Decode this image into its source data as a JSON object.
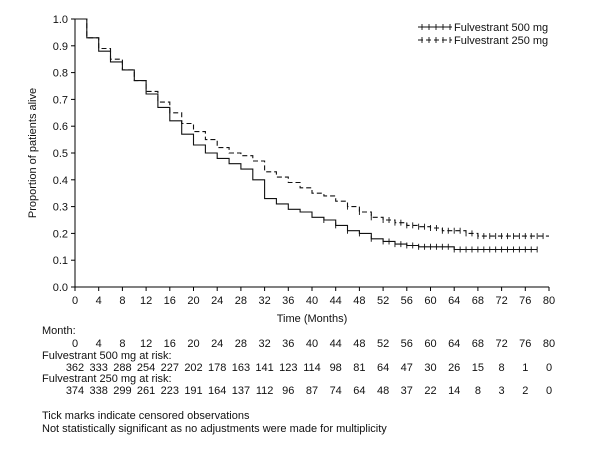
{
  "chart_data": {
    "type": "line",
    "subtype": "kaplan-meier",
    "xlabel": "Time (Months)",
    "ylabel": "Proportion of patients alive",
    "xlim": [
      0,
      80
    ],
    "ylim": [
      0.0,
      1.0
    ],
    "x_ticks": [
      "0",
      "4",
      "8",
      "12",
      "16",
      "20",
      "24",
      "28",
      "32",
      "36",
      "40",
      "44",
      "48",
      "52",
      "56",
      "60",
      "64",
      "68",
      "72",
      "76",
      "80"
    ],
    "y_ticks": [
      "0.0",
      "0.1",
      "0.2",
      "0.3",
      "0.4",
      "0.5",
      "0.6",
      "0.7",
      "0.8",
      "0.9",
      "1.0"
    ],
    "legend": [
      {
        "label": "Fulvestrant 500 mg",
        "style": "solid-censored"
      },
      {
        "label": "Fulvestrant 250 mg",
        "style": "dashed-censored"
      }
    ],
    "series": [
      {
        "name": "Fulvestrant 500 mg",
        "style": "solid",
        "x": [
          0,
          2,
          4,
          6,
          8,
          10,
          12,
          14,
          16,
          18,
          20,
          22,
          24,
          26,
          28,
          30,
          32,
          34,
          36,
          38,
          40,
          42,
          44,
          46,
          48,
          50,
          52,
          54,
          56,
          58,
          60,
          62,
          64,
          66,
          68,
          70,
          72,
          74,
          76,
          78
        ],
        "y": [
          1.0,
          0.93,
          0.88,
          0.84,
          0.81,
          0.77,
          0.72,
          0.67,
          0.62,
          0.57,
          0.53,
          0.5,
          0.48,
          0.46,
          0.44,
          0.4,
          0.33,
          0.31,
          0.29,
          0.28,
          0.26,
          0.25,
          0.23,
          0.21,
          0.2,
          0.18,
          0.17,
          0.16,
          0.155,
          0.15,
          0.15,
          0.15,
          0.14,
          0.14,
          0.14,
          0.14,
          0.14,
          0.14,
          0.14,
          0.14
        ],
        "censor_x": [
          42,
          44,
          46,
          48,
          50,
          52,
          53,
          54,
          55,
          56,
          57,
          58,
          59,
          60,
          61,
          62,
          63,
          64,
          65,
          66,
          67,
          68,
          69,
          70,
          71,
          72,
          73,
          74,
          75,
          76,
          77,
          78
        ]
      },
      {
        "name": "Fulvestrant 250 mg",
        "style": "dashed",
        "x": [
          0,
          2,
          4,
          6,
          8,
          10,
          12,
          14,
          16,
          18,
          20,
          22,
          24,
          26,
          28,
          30,
          32,
          34,
          36,
          38,
          40,
          42,
          44,
          46,
          48,
          50,
          52,
          54,
          56,
          58,
          60,
          62,
          64,
          66,
          68,
          70,
          72,
          74,
          76,
          78,
          80
        ],
        "y": [
          1.0,
          0.93,
          0.89,
          0.85,
          0.81,
          0.77,
          0.73,
          0.69,
          0.65,
          0.61,
          0.58,
          0.55,
          0.52,
          0.5,
          0.49,
          0.47,
          0.43,
          0.41,
          0.39,
          0.37,
          0.35,
          0.34,
          0.32,
          0.3,
          0.28,
          0.26,
          0.25,
          0.24,
          0.23,
          0.225,
          0.22,
          0.21,
          0.21,
          0.2,
          0.19,
          0.19,
          0.19,
          0.19,
          0.19,
          0.19,
          0.19
        ],
        "censor_x": [
          46,
          48,
          50,
          52,
          53,
          54,
          55,
          56,
          57,
          58,
          59,
          60,
          61,
          62,
          63,
          64,
          65,
          66,
          67,
          68,
          69,
          70,
          71,
          72,
          73,
          74,
          75,
          76,
          77,
          78,
          79
        ]
      }
    ],
    "risk_table": {
      "month_label": "Month:",
      "months": [
        "0",
        "4",
        "8",
        "12",
        "16",
        "20",
        "24",
        "28",
        "32",
        "36",
        "40",
        "44",
        "48",
        "52",
        "56",
        "60",
        "64",
        "68",
        "72",
        "76",
        "80"
      ],
      "rows": [
        {
          "label": "Fulvestrant  500 mg at risk:",
          "values": [
            "362",
            "333",
            "288",
            "254",
            "227",
            "202",
            "178",
            "163",
            "141",
            "123",
            "114",
            "98",
            "81",
            "64",
            "47",
            "30",
            "26",
            "15",
            "8",
            "1",
            "0"
          ]
        },
        {
          "label": "Fulvestrant  250 mg at risk:",
          "values": [
            "374",
            "338",
            "299",
            "261",
            "223",
            "191",
            "164",
            "137",
            "112",
            "96",
            "87",
            "74",
            "64",
            "48",
            "37",
            "22",
            "14",
            "8",
            "3",
            "2",
            "0"
          ]
        }
      ]
    },
    "footnotes": [
      "Tick marks indicate censored observations",
      "Not statistically significant as no adjustments were made for multiplicity"
    ]
  }
}
